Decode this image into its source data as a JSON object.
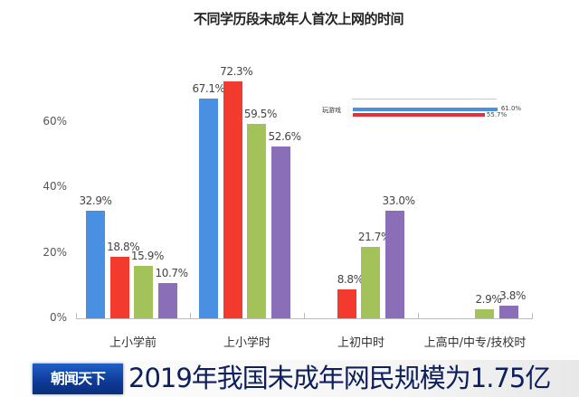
{
  "chart_data": {
    "type": "bar",
    "title": "不同学历段未成年人首次上网的时间",
    "xlabel": "",
    "ylabel": "",
    "ylim": [
      0,
      80
    ],
    "yticks": [
      "0%",
      "20%",
      "40%",
      "60%"
    ],
    "grid": false,
    "categories": [
      "上小学前",
      "上小学时",
      "上初中时",
      "上高中/中专/技校时"
    ],
    "series": [
      {
        "name": "series-1",
        "color": "#4a90e2",
        "values": [
          32.9,
          67.1,
          null,
          null
        ],
        "labels": [
          "32.9%",
          "67.1%",
          "",
          ""
        ]
      },
      {
        "name": "series-2",
        "color": "#f23a2e",
        "values": [
          18.8,
          72.3,
          8.8,
          null
        ],
        "labels": [
          "18.8%",
          "72.3%",
          "8.8%",
          ""
        ]
      },
      {
        "name": "series-3",
        "color": "#a4c25a",
        "values": [
          15.9,
          59.5,
          21.7,
          2.9
        ],
        "labels": [
          "15.9%",
          "59.5%",
          "21.7%",
          "2.9%"
        ]
      },
      {
        "name": "series-4",
        "color": "#8a6fb8",
        "values": [
          10.7,
          52.6,
          33.0,
          3.8
        ],
        "labels": [
          "10.7%",
          "52.6%",
          "33.0%",
          "3.8%"
        ]
      }
    ],
    "inset": {
      "type": "bar-horizontal",
      "category": "玩游戏",
      "series": [
        {
          "color": "#4a90e2",
          "value": 61.0,
          "label": "61.0%"
        },
        {
          "color": "#e8303a",
          "value": 55.7,
          "label": "55.7%"
        }
      ]
    }
  },
  "ticker": {
    "logo": "朝闻天下",
    "headline": "2019年我国未成年网民规模为1.75亿"
  }
}
